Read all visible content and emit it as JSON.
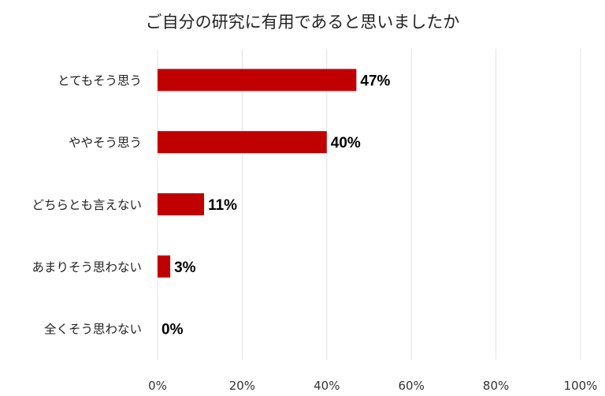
{
  "chart_data": {
    "type": "bar",
    "orientation": "horizontal",
    "title": "ご自分の研究に有用であると思いましたか",
    "categories": [
      "とてもそう思う",
      "ややそう思う",
      "どちらとも言えない",
      "あまりそう思わない",
      "全くそう思わない"
    ],
    "values": [
      47,
      40,
      11,
      3,
      0
    ],
    "data_labels": [
      "47%",
      "40%",
      "11%",
      "3%",
      "0%"
    ],
    "xlim": [
      0,
      100
    ],
    "x_ticks": [
      0,
      20,
      40,
      60,
      80,
      100
    ],
    "x_tick_labels": [
      "0%",
      "20%",
      "40%",
      "60%",
      "80%",
      "100%"
    ],
    "bar_color": "#c00000",
    "grid": true,
    "grid_color": "#e3e3e3",
    "legend": "none"
  }
}
